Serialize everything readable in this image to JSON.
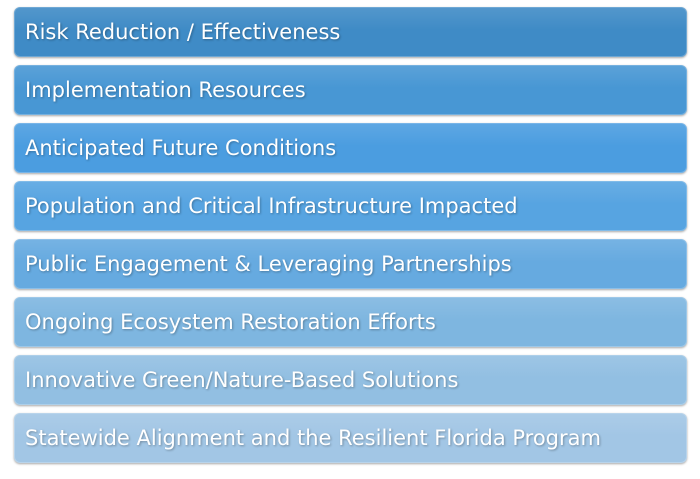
{
  "criteria": [
    {
      "label": "Risk Reduction / Effectiveness",
      "color": "#3f8bc6"
    },
    {
      "label": "Implementation Resources",
      "color": "#4897d4"
    },
    {
      "label": "Anticipated Future Conditions",
      "color": "#4b9de0"
    },
    {
      "label": "Population and Critical Infrastructure Impacted",
      "color": "#57a4e1"
    },
    {
      "label": "Public Engagement & Leveraging Partnerships",
      "color": "#66aae0"
    },
    {
      "label": "Ongoing Ecosystem Restoration Efforts",
      "color": "#7eb6e0"
    },
    {
      "label": "Innovative Green/Nature-Based Solutions",
      "color": "#92bfe2"
    },
    {
      "label": "Statewide Alignment and the Resilient Florida Program",
      "color": "#a2c6e5"
    }
  ]
}
